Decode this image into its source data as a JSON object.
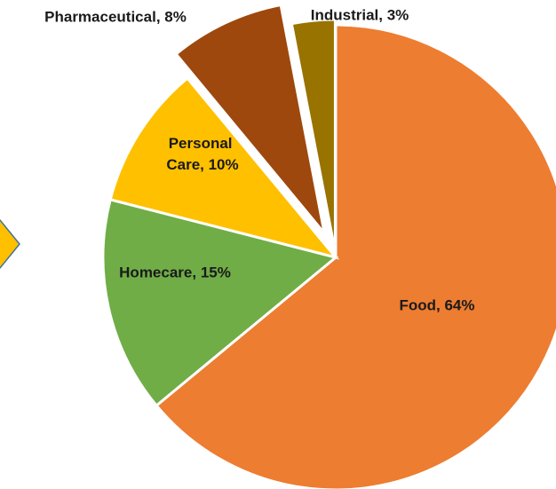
{
  "chart_data": {
    "type": "pie",
    "categories": [
      "Food",
      "Homecare",
      "Personal Care",
      "Pharmaceutical",
      "Industrial"
    ],
    "values": [
      64,
      15,
      10,
      8,
      3
    ],
    "value_labels": [
      "Food, 64%",
      "Homecare, 15%",
      "Personal Care, 10%",
      "Pharmaceutical, 8%",
      "Industrial, 3%"
    ],
    "colors": [
      "#ed7d31",
      "#70ad47",
      "#ffc000",
      "#9e480e",
      "#997300"
    ]
  }
}
